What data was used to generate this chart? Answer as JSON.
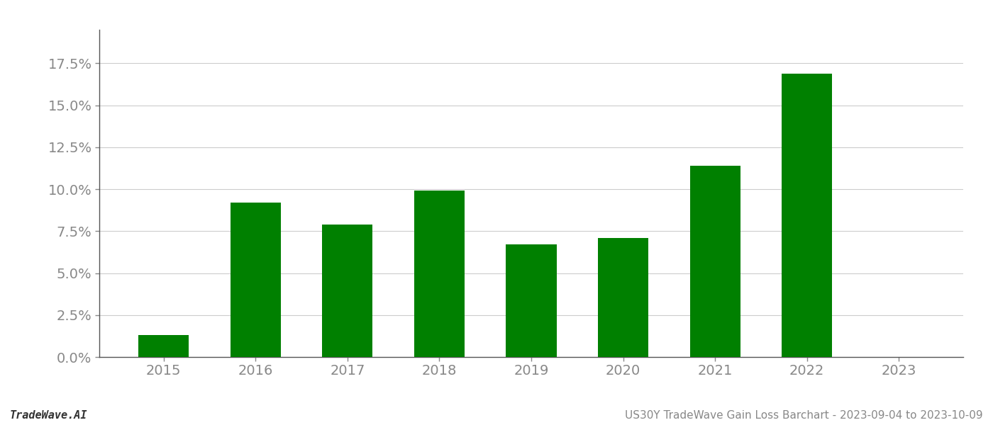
{
  "categories": [
    "2015",
    "2016",
    "2017",
    "2018",
    "2019",
    "2020",
    "2021",
    "2022",
    "2023"
  ],
  "values": [
    0.013,
    0.092,
    0.079,
    0.099,
    0.067,
    0.071,
    0.114,
    0.169,
    null
  ],
  "bar_color": "#008000",
  "background_color": "#ffffff",
  "grid_color": "#cccccc",
  "axis_color": "#555555",
  "tick_color": "#888888",
  "footer_left": "TradeWave.AI",
  "footer_right": "US30Y TradeWave Gain Loss Barchart - 2023-09-04 to 2023-10-09",
  "ylim": [
    0,
    0.195
  ],
  "yticks": [
    0.0,
    0.025,
    0.05,
    0.075,
    0.1,
    0.125,
    0.15,
    0.175
  ],
  "ytick_labels": [
    "0.0%",
    "2.5%",
    "5.0%",
    "7.5%",
    "10.0%",
    "12.5%",
    "15.0%",
    "17.5%"
  ],
  "footer_fontsize": 11,
  "tick_fontsize": 14,
  "bar_width": 0.55
}
